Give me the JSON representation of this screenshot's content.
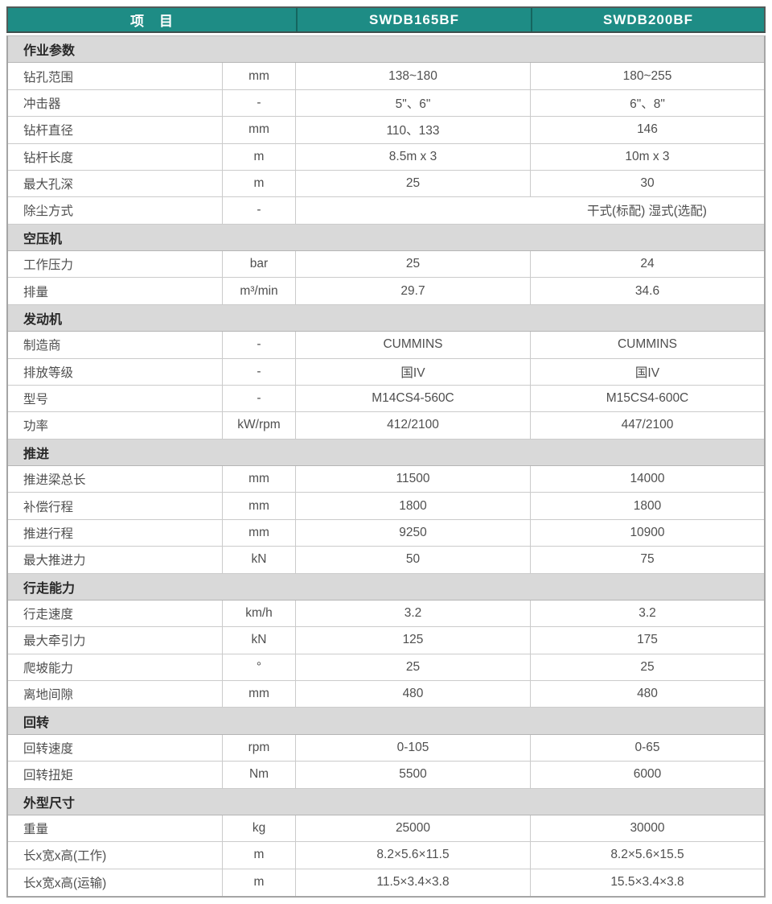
{
  "table": {
    "header": {
      "item_label": "项　目",
      "model_1": "SWDB165BF",
      "model_2": "SWDB200BF"
    },
    "sections": [
      {
        "title": "作业参数",
        "rows": [
          {
            "name": "钻孔范围",
            "unit": "mm",
            "v1": "138~180",
            "v2": "180~255"
          },
          {
            "name": "冲击器",
            "unit": "-",
            "v1": "5\"、6\"",
            "v2": "6\"、8\""
          },
          {
            "name": "钻杆直径",
            "unit": "mm",
            "v1": "110、133",
            "v2": "146"
          },
          {
            "name": "钻杆长度",
            "unit": "m",
            "v1": "8.5m x 3",
            "v2": "10m x 3"
          },
          {
            "name": "最大孔深",
            "unit": "m",
            "v1": "25",
            "v2": "30"
          },
          {
            "name": "除尘方式",
            "unit": "-",
            "merged": "干式(标配) 湿式(选配)"
          }
        ]
      },
      {
        "title": "空压机",
        "rows": [
          {
            "name": "工作压力",
            "unit": "bar",
            "v1": "25",
            "v2": "24"
          },
          {
            "name": "排量",
            "unit": "m³/min",
            "v1": "29.7",
            "v2": "34.6"
          }
        ]
      },
      {
        "title": "发动机",
        "rows": [
          {
            "name": "制造商",
            "unit": "-",
            "v1": "CUMMINS",
            "v2": "CUMMINS"
          },
          {
            "name": "排放等级",
            "unit": "-",
            "v1": "国IV",
            "v2": "国IV"
          },
          {
            "name": "型号",
            "unit": "-",
            "v1": "M14CS4-560C",
            "v2": "M15CS4-600C"
          },
          {
            "name": "功率",
            "unit": "kW/rpm",
            "v1": "412/2100",
            "v2": "447/2100"
          }
        ]
      },
      {
        "title": "推进",
        "rows": [
          {
            "name": "推进梁总长",
            "unit": "mm",
            "v1": "11500",
            "v2": "14000"
          },
          {
            "name": "补偿行程",
            "unit": "mm",
            "v1": "1800",
            "v2": "1800"
          },
          {
            "name": "推进行程",
            "unit": "mm",
            "v1": "9250",
            "v2": "10900"
          },
          {
            "name": "最大推进力",
            "unit": "kN",
            "v1": "50",
            "v2": "75"
          }
        ]
      },
      {
        "title": "行走能力",
        "rows": [
          {
            "name": "行走速度",
            "unit": "km/h",
            "v1": "3.2",
            "v2": "3.2"
          },
          {
            "name": "最大牵引力",
            "unit": "kN",
            "v1": "125",
            "v2": "175"
          },
          {
            "name": "爬坡能力",
            "unit": "°",
            "v1": "25",
            "v2": "25"
          },
          {
            "name": "离地间隙",
            "unit": "mm",
            "v1": "480",
            "v2": "480"
          }
        ]
      },
      {
        "title": "回转",
        "rows": [
          {
            "name": "回转速度",
            "unit": "rpm",
            "v1": "0-105",
            "v2": "0-65"
          },
          {
            "name": "回转扭矩",
            "unit": "Nm",
            "v1": "5500",
            "v2": "6000"
          }
        ]
      },
      {
        "title": "外型尺寸",
        "rows": [
          {
            "name": "重量",
            "unit": "kg",
            "v1": "25000",
            "v2": "30000"
          },
          {
            "name": "长x宽x高(工作)",
            "unit": "m",
            "v1": "8.2×5.6×11.5",
            "v2": "8.2×5.6×15.5"
          },
          {
            "name": "长x宽x高(运输)",
            "unit": "m",
            "v1": "11.5×3.4×3.8",
            "v2": "15.5×3.4×3.8"
          }
        ]
      }
    ],
    "colors": {
      "header_bg": "#1E8C85",
      "header_text": "#FFFFFF",
      "header_divider": "#15655F",
      "section_bg": "#D9D9D9",
      "row_border": "#CBCBCB",
      "outer_border": "#A5A5A5",
      "data_text": "#4F4F4F"
    }
  }
}
